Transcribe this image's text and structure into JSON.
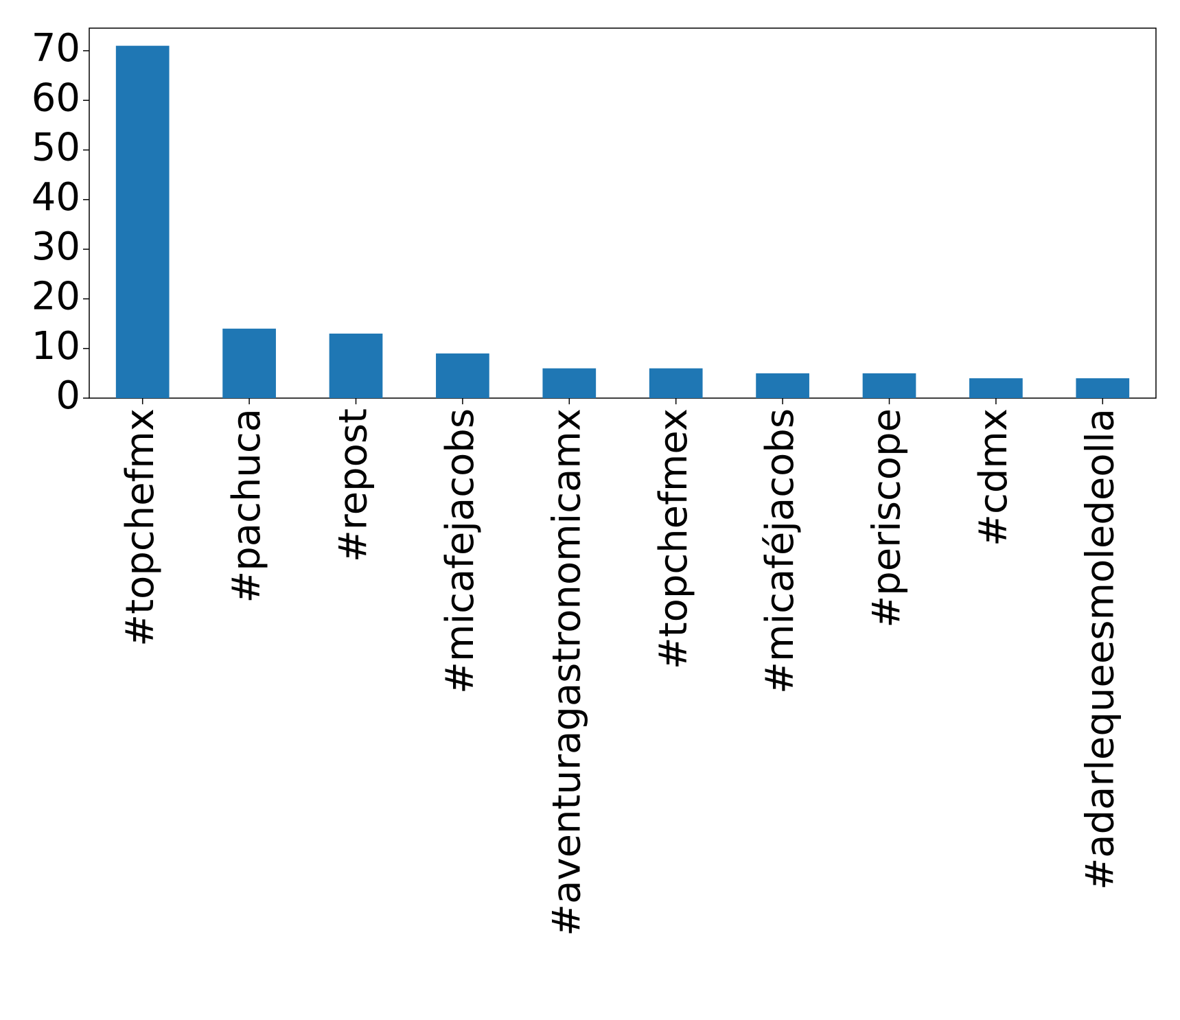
{
  "chart_data": {
    "type": "bar",
    "categories": [
      "#topchefmx",
      "#pachuca",
      "#repost",
      "#micafejacobs",
      "#aventuragastronomicamx",
      "#topchefmex",
      "#micaféjacobs",
      "#periscope",
      "#cdmx",
      "#adarlequeesmoledeolla"
    ],
    "values": [
      71,
      14,
      13,
      9,
      6,
      6,
      5,
      5,
      4,
      4
    ],
    "color": "#1f77b4",
    "ylim": [
      0,
      74.55
    ],
    "yticks": [
      0,
      10,
      20,
      30,
      40,
      50,
      60,
      70
    ],
    "grid": false
  }
}
